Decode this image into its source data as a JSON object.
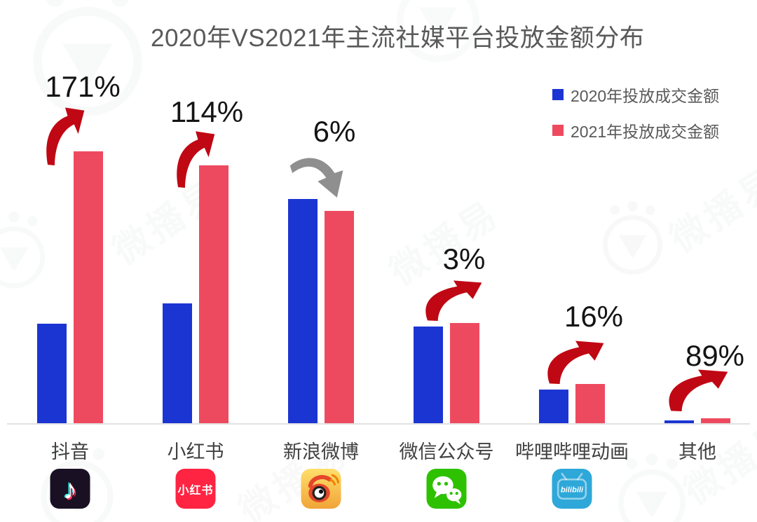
{
  "title": "2020年VS2021年主流社媒平台投放金额分布",
  "watermark": {
    "text": "微播易"
  },
  "legend": {
    "items": [
      {
        "label": "2020年投放成交金额",
        "color": "#1b35d3"
      },
      {
        "label": "2021年投放成交金额",
        "color": "#ee4a5f"
      }
    ]
  },
  "icons": {
    "xiaohongshu_text": "小红书",
    "bilibili_text": "bilibili"
  },
  "chart_data": {
    "type": "bar",
    "title": "2020年VS2021年主流社媒平台投放金额分布",
    "categories": [
      "抖音",
      "小红书",
      "新浪微博",
      "微信公众号",
      "哔哩哔哩动画",
      "其他"
    ],
    "series": [
      {
        "name": "2020年投放成交金额",
        "color": "#1b35d3",
        "values": [
          143,
          172,
          321,
          139,
          49,
          5
        ]
      },
      {
        "name": "2021年投放成交金额",
        "color": "#ee4a5f",
        "values": [
          389,
          369,
          304,
          144,
          57,
          8
        ]
      }
    ],
    "values_unit": "relative-bar-height",
    "change_labels": [
      {
        "category": "抖音",
        "label": "171%",
        "direction": "up"
      },
      {
        "category": "小红书",
        "label": "114%",
        "direction": "up"
      },
      {
        "category": "新浪微博",
        "label": "6%",
        "direction": "down"
      },
      {
        "category": "微信公众号",
        "label": "3%",
        "direction": "up"
      },
      {
        "category": "哔哩哔哩动画",
        "label": "16%",
        "direction": "up"
      },
      {
        "category": "其他",
        "label": "89%",
        "direction": "up"
      }
    ],
    "arrow_colors": {
      "up": "#c00714",
      "down": "#8f8f8f"
    },
    "platform_icons": [
      "douyin-icon",
      "xiaohongshu-icon",
      "weibo-icon",
      "wechat-icon",
      "bilibili-icon",
      ""
    ],
    "legend_position": "top-right",
    "grid": false,
    "y_axis_visible": false,
    "baseline_visible": true
  }
}
